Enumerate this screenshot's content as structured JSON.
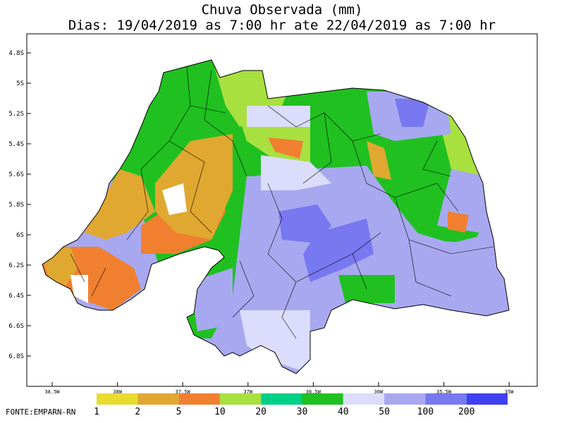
{
  "header": {
    "title": "Chuva Observada (mm)",
    "subtitle": "Dias: 19/04/2019 as 7:00 hr ate 22/04/2019 as 7:00 hr"
  },
  "map": {
    "latitude_labels": [
      "4.8S",
      "5S",
      "5.2S",
      "5.4S",
      "5.6S",
      "5.8S",
      "6S",
      "6.2S",
      "6.4S",
      "6.6S",
      "6.8S"
    ],
    "longitude_labels": [
      "38.5W",
      "38W",
      "37.5W",
      "37W",
      "36.5W",
      "36W",
      "35.5W",
      "35W"
    ]
  },
  "legend": {
    "items": [
      {
        "label": "1",
        "color": "#e8dc30"
      },
      {
        "label": "2",
        "color": "#e0a830"
      },
      {
        "label": "5",
        "color": "#f08030"
      },
      {
        "label": "10",
        "color": "#a8e040"
      },
      {
        "label": "20",
        "color": "#00d088"
      },
      {
        "label": "30",
        "color": "#20c020"
      },
      {
        "label": "40",
        "color": "#dcdcfc"
      },
      {
        "label": "50",
        "color": "#a8a8f0"
      },
      {
        "label": "100",
        "color": "#7878f0"
      },
      {
        "label": "200",
        "color": "#4040f0"
      }
    ]
  },
  "footer": {
    "source": "FONTE:EMPARN-RN"
  }
}
